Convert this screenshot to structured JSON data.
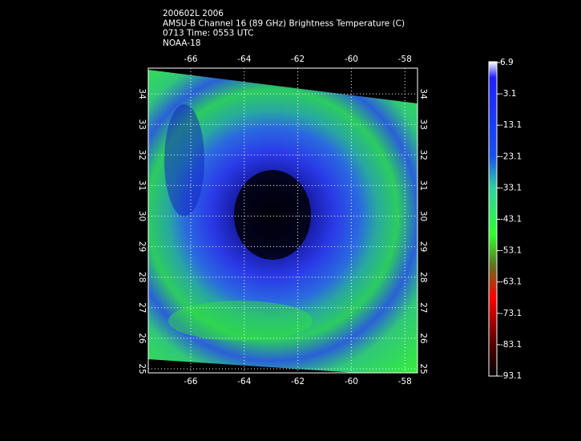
{
  "header": {
    "lines": [
      "200602L 2006",
      "AMSU-B Channel 16 (89 GHz) Brightness Temperature (C)",
      "0713 Time: 0553 UTC",
      "NOAA-18"
    ]
  },
  "map": {
    "lon_ticks": [
      -66,
      -64,
      -62,
      -60,
      -58
    ],
    "lat_ticks": [
      25,
      26,
      27,
      28,
      29,
      30,
      31,
      32,
      33,
      34
    ]
  },
  "colorbar": {
    "labels": [
      6.9,
      -3.1,
      -13.1,
      -23.1,
      -33.1,
      -43.1,
      -53.1,
      -63.1,
      -73.1,
      -83.1,
      -93.1
    ]
  }
}
